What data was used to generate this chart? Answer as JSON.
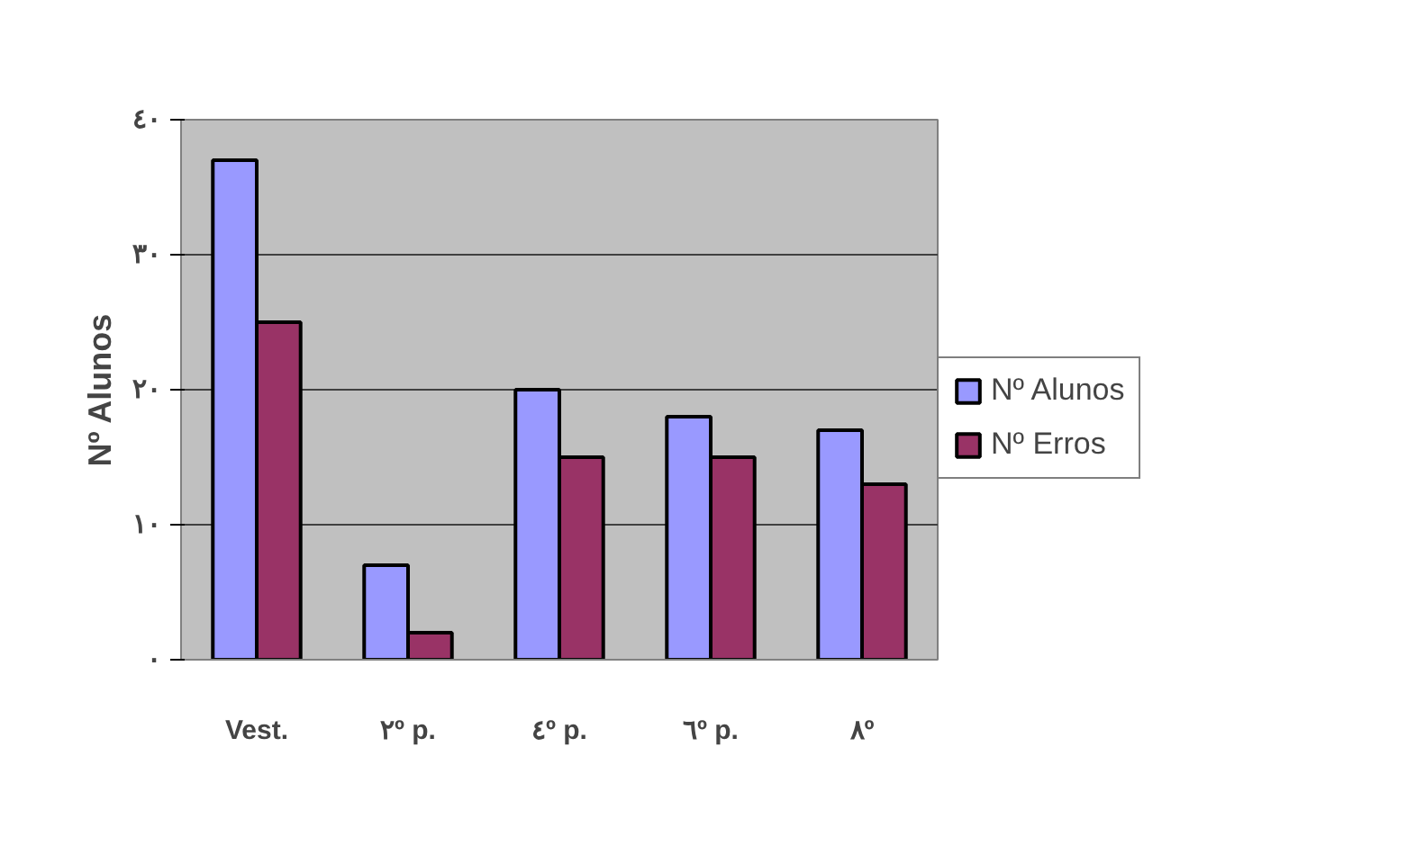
{
  "chart_data": {
    "type": "bar",
    "ylabel": "Nº Alunos",
    "categories": [
      "Vest.",
      "٢º p.",
      "٤º p.",
      "٦º p.",
      "٨º"
    ],
    "series": [
      {
        "name": "Nº Alunos",
        "color": "#9999ff",
        "values": [
          37,
          7,
          20,
          18,
          17
        ]
      },
      {
        "name": "Nº Erros",
        "color": "#993366",
        "values": [
          25,
          2,
          15,
          15,
          13
        ]
      }
    ],
    "ylim": [
      0,
      40
    ],
    "yticks": [
      {
        "value": 0,
        "label": "٠"
      },
      {
        "value": 10,
        "label": "١٠"
      },
      {
        "value": 20,
        "label": "٢٠"
      },
      {
        "value": 30,
        "label": "٣٠"
      },
      {
        "value": 40,
        "label": "٤٠"
      }
    ],
    "grid": "y",
    "legend": "right"
  }
}
